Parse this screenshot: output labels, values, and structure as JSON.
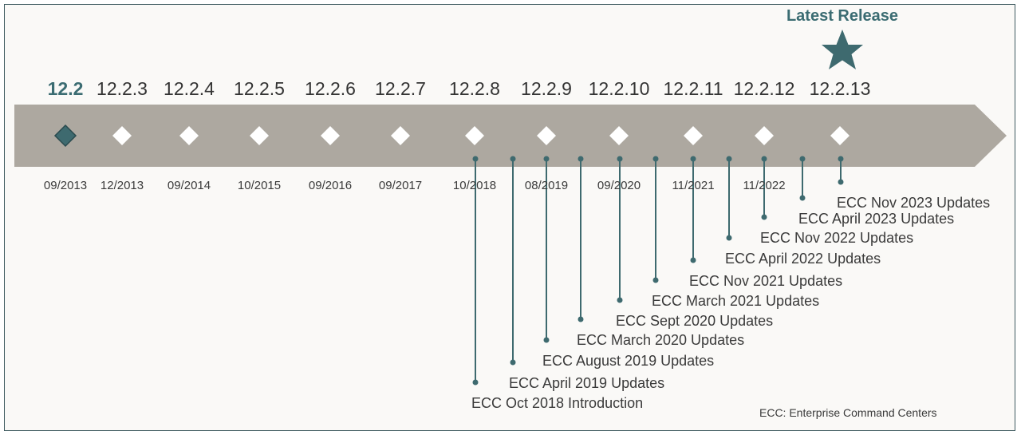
{
  "latest_release_label": "Latest Release",
  "footnote": "ECC: Enterprise Command Centers",
  "colors": {
    "accent": "#3b6c72",
    "timeline_band": "#ada8a0",
    "connector": "#3e6a6f",
    "milestone_marker": "#ffffff",
    "current_marker": "#3e6a6f"
  },
  "releases": [
    {
      "version": "12.2",
      "date": "09/2013",
      "current": true
    },
    {
      "version": "12.2.3",
      "date": "12/2013"
    },
    {
      "version": "12.2.4",
      "date": "09/2014"
    },
    {
      "version": "12.2.5",
      "date": "10/2015"
    },
    {
      "version": "12.2.6",
      "date": "09/2016"
    },
    {
      "version": "12.2.7",
      "date": "09/2017"
    },
    {
      "version": "12.2.8",
      "date": "10/2018"
    },
    {
      "version": "12.2.9",
      "date": "08/2019"
    },
    {
      "version": "12.2.10",
      "date": "09/2020"
    },
    {
      "version": "12.2.11",
      "date": "11/2021"
    },
    {
      "version": "12.2.12",
      "date": "11/2022"
    },
    {
      "version": "12.2.13",
      "date": "",
      "latest": true
    }
  ],
  "ecc_updates": [
    "ECC Oct 2018 Introduction",
    "ECC April 2019 Updates",
    "ECC August 2019 Updates",
    "ECC March 2020 Updates",
    "ECC Sept 2020 Updates",
    "ECC March 2021 Updates",
    "ECC Nov 2021 Updates",
    "ECC April 2022 Updates",
    "ECC Nov 2022 Updates",
    "ECC April 2023 Updates",
    "ECC Nov 2023 Updates"
  ]
}
